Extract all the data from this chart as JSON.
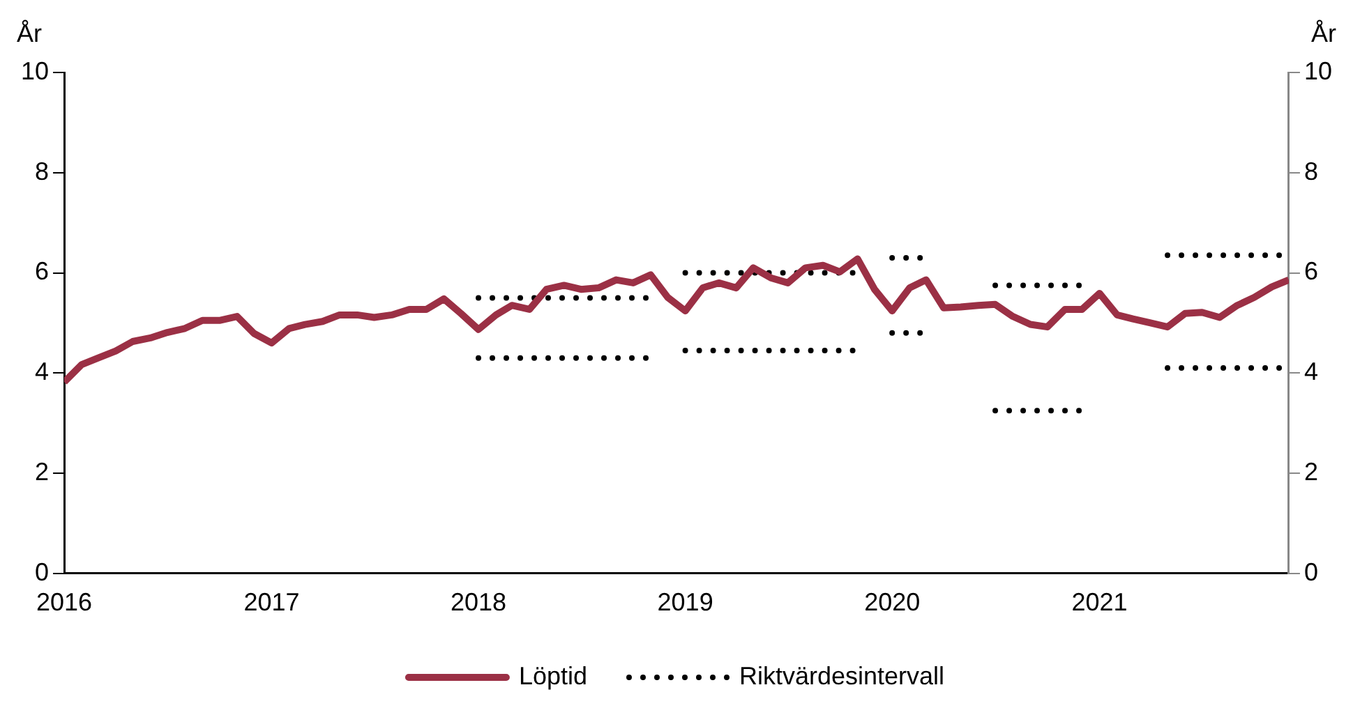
{
  "chart_data": {
    "type": "line",
    "x": [
      "2016-01",
      "2016-02",
      "2016-03",
      "2016-04",
      "2016-05",
      "2016-06",
      "2016-07",
      "2016-08",
      "2016-09",
      "2016-10",
      "2016-11",
      "2016-12",
      "2017-01",
      "2017-02",
      "2017-03",
      "2017-04",
      "2017-05",
      "2017-06",
      "2017-07",
      "2017-08",
      "2017-09",
      "2017-10",
      "2017-11",
      "2017-12",
      "2018-01",
      "2018-02",
      "2018-03",
      "2018-04",
      "2018-05",
      "2018-06",
      "2018-07",
      "2018-08",
      "2018-09",
      "2018-10",
      "2018-11",
      "2018-12",
      "2019-01",
      "2019-02",
      "2019-03",
      "2019-04",
      "2019-05",
      "2019-06",
      "2019-07",
      "2019-08",
      "2019-09",
      "2019-10",
      "2019-11",
      "2019-12",
      "2020-01",
      "2020-02",
      "2020-03",
      "2020-04",
      "2020-05",
      "2020-06",
      "2020-07",
      "2020-08",
      "2020-09",
      "2020-10",
      "2020-11",
      "2020-12",
      "2021-01",
      "2021-02",
      "2021-03",
      "2021-04",
      "2021-05",
      "2021-06",
      "2021-07",
      "2021-08",
      "2021-09",
      "2021-10",
      "2021-11",
      "2021-12"
    ],
    "series": [
      {
        "name": "Löptid",
        "color": "#9b3045",
        "line_style": "solid",
        "values": [
          3.82,
          4.17,
          4.3,
          4.44,
          4.63,
          4.7,
          4.81,
          4.89,
          5.05,
          5.05,
          5.13,
          4.79,
          4.6,
          4.89,
          4.97,
          5.03,
          5.16,
          5.16,
          5.11,
          5.16,
          5.27,
          5.27,
          5.48,
          5.19,
          4.87,
          5.16,
          5.35,
          5.27,
          5.67,
          5.75,
          5.67,
          5.7,
          5.86,
          5.8,
          5.96,
          5.51,
          5.24,
          5.7,
          5.8,
          5.7,
          6.1,
          5.9,
          5.8,
          6.1,
          6.15,
          6.02,
          6.28,
          5.67,
          5.24,
          5.7,
          5.86,
          5.3,
          5.32,
          5.35,
          5.37,
          5.13,
          4.97,
          4.92,
          5.27,
          5.27,
          5.59,
          5.16,
          5.08,
          5.0,
          4.92,
          5.19,
          5.21,
          5.11,
          5.35,
          5.51,
          5.72,
          5.86
        ]
      },
      {
        "name": "Riktvärdesintervall",
        "color": "#000000",
        "line_style": "dotted",
        "values": [
          null,
          null,
          null,
          null,
          null,
          null,
          null,
          null,
          null,
          null,
          null,
          null,
          null,
          null,
          null,
          null,
          null,
          null,
          null,
          null,
          null,
          null,
          null,
          null,
          5.5,
          5.5,
          5.5,
          5.5,
          5.5,
          5.5,
          5.5,
          5.5,
          5.5,
          5.5,
          5.5,
          null,
          6.0,
          6.0,
          6.0,
          6.0,
          6.0,
          6.0,
          6.0,
          6.0,
          6.0,
          6.0,
          6.0,
          null,
          6.3,
          6.3,
          6.3,
          null,
          null,
          null,
          5.75,
          5.75,
          5.75,
          5.75,
          5.75,
          5.75,
          null,
          null,
          null,
          null,
          6.35,
          6.35,
          6.35,
          6.35,
          6.35,
          6.35,
          6.35,
          6.35
        ]
      },
      {
        "color": "#000000",
        "line_style": "dotted",
        "values": [
          null,
          null,
          null,
          null,
          null,
          null,
          null,
          null,
          null,
          null,
          null,
          null,
          null,
          null,
          null,
          null,
          null,
          null,
          null,
          null,
          null,
          null,
          null,
          null,
          4.3,
          4.3,
          4.3,
          4.3,
          4.3,
          4.3,
          4.3,
          4.3,
          4.3,
          4.3,
          4.3,
          null,
          4.45,
          4.45,
          4.45,
          4.45,
          4.45,
          4.45,
          4.45,
          4.45,
          4.45,
          4.45,
          4.45,
          null,
          4.8,
          4.8,
          4.8,
          null,
          null,
          null,
          3.25,
          3.25,
          3.25,
          3.25,
          3.25,
          3.25,
          null,
          null,
          null,
          null,
          4.1,
          4.1,
          4.1,
          4.1,
          4.1,
          4.1,
          4.1,
          4.1
        ]
      }
    ],
    "ylabel": "År",
    "y2label": "År",
    "xlim": [
      "2016-01",
      "2021-12"
    ],
    "xticks": [
      "2016",
      "2017",
      "2018",
      "2019",
      "2020",
      "2021"
    ],
    "ylim": [
      0,
      10
    ],
    "yticks": [
      0,
      2,
      4,
      6,
      8,
      10
    ],
    "y2lim": [
      0,
      10
    ],
    "y2ticks": [
      0,
      2,
      4,
      6,
      8,
      10
    ],
    "grid": false,
    "legend": "bottom",
    "marker": "none"
  }
}
